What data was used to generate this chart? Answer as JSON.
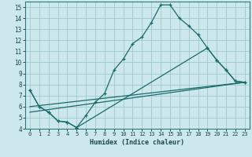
{
  "xlabel": "Humidex (Indice chaleur)",
  "bg_color": "#cde8ec",
  "grid_color": "#a0c8d0",
  "line_color": "#1a6b6b",
  "xlim": [
    -0.5,
    23.5
  ],
  "ylim": [
    4,
    15.5
  ],
  "xticks": [
    0,
    1,
    2,
    3,
    4,
    5,
    6,
    7,
    8,
    9,
    10,
    11,
    12,
    13,
    14,
    15,
    16,
    17,
    18,
    19,
    20,
    21,
    22,
    23
  ],
  "yticks": [
    4,
    5,
    6,
    7,
    8,
    9,
    10,
    11,
    12,
    13,
    14,
    15
  ],
  "line1_x": [
    0,
    1,
    2,
    3,
    4,
    5,
    6,
    7,
    8,
    9,
    10,
    11,
    12,
    13,
    14,
    15,
    16,
    17,
    18,
    19,
    20,
    21,
    22,
    23
  ],
  "line1_y": [
    7.5,
    6.0,
    5.5,
    4.7,
    4.6,
    4.1,
    5.2,
    6.4,
    7.2,
    9.3,
    10.3,
    11.7,
    12.3,
    13.6,
    15.2,
    15.2,
    14.0,
    13.3,
    12.5,
    11.3,
    10.2,
    9.3,
    8.3,
    8.2
  ],
  "line2_x": [
    0,
    1,
    2,
    3,
    4,
    5,
    19,
    20,
    21,
    22,
    23
  ],
  "line2_y": [
    7.5,
    6.0,
    5.5,
    4.7,
    4.6,
    4.1,
    11.3,
    10.2,
    9.3,
    8.3,
    8.2
  ],
  "line3_x": [
    0,
    23
  ],
  "line3_y": [
    6.0,
    8.2
  ],
  "line4_x": [
    0,
    23
  ],
  "line4_y": [
    5.5,
    8.2
  ]
}
